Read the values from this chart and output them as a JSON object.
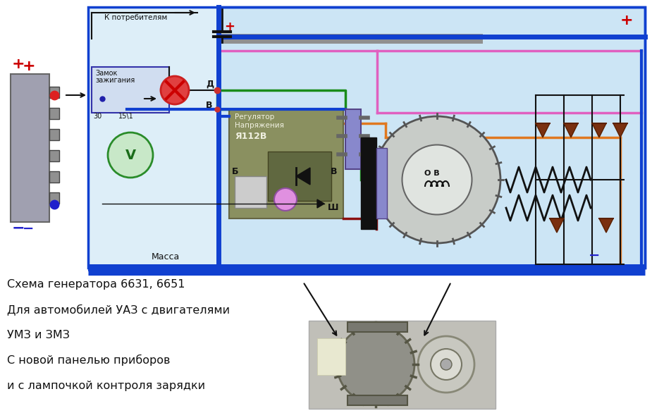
{
  "bg_color": "#ffffff",
  "diag_bg_left": "#ddeef8",
  "diag_bg_right": "#cce5f5",
  "title_lines": [
    "Схема генератора 6631, 6651",
    "Для автомобилей УАЗ с двигателями",
    "УМЗ и ЗМЗ",
    "С новой панелью приборов",
    "и с лампочкой контроля зарядки"
  ],
  "plus_color": "#cc0000",
  "minus_color": "#2222cc",
  "wire_blue": "#1040d0",
  "wire_green": "#1a8c1a",
  "wire_pink": "#e060c0",
  "wire_orange": "#e07820",
  "wire_brown": "#8B3010",
  "wire_gray": "#888888",
  "wire_black": "#111111"
}
